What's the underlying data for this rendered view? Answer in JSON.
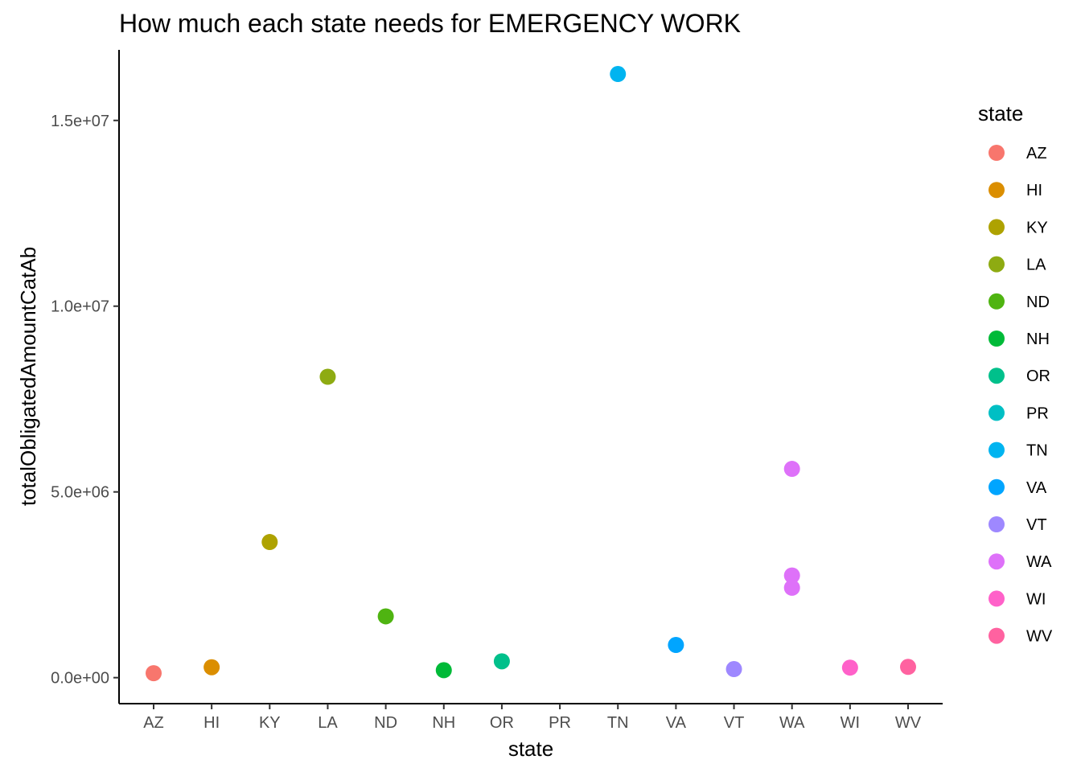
{
  "chart_data": {
    "type": "scatter",
    "title": "How much each state needs for EMERGENCY WORK",
    "xlabel": "state",
    "ylabel": "totalObligatedAmountCatAb",
    "categories": [
      "AZ",
      "HI",
      "KY",
      "LA",
      "ND",
      "NH",
      "OR",
      "PR",
      "TN",
      "VA",
      "VT",
      "WA",
      "WI",
      "WV"
    ],
    "ylim": [
      -700000,
      16900000
    ],
    "yticks": [
      {
        "value": 0,
        "label": "0.0e+00"
      },
      {
        "value": 5000000,
        "label": "5.0e+06"
      },
      {
        "value": 10000000,
        "label": "1.0e+07"
      },
      {
        "value": 15000000,
        "label": "1.5e+07"
      }
    ],
    "points": [
      {
        "state": "AZ",
        "value": 120000
      },
      {
        "state": "HI",
        "value": 280000
      },
      {
        "state": "KY",
        "value": 3650000
      },
      {
        "state": "LA",
        "value": 8100000
      },
      {
        "state": "ND",
        "value": 1650000
      },
      {
        "state": "NH",
        "value": 200000
      },
      {
        "state": "OR",
        "value": 440000
      },
      {
        "state": "TN",
        "value": 16250000
      },
      {
        "state": "VA",
        "value": 880000
      },
      {
        "state": "VT",
        "value": 230000
      },
      {
        "state": "WA",
        "value": 5620000
      },
      {
        "state": "WA",
        "value": 2750000
      },
      {
        "state": "WA",
        "value": 2420000
      },
      {
        "state": "WI",
        "value": 270000
      },
      {
        "state": "WV",
        "value": 290000
      }
    ],
    "legend": {
      "title": "state",
      "position": "right",
      "items": [
        {
          "label": "AZ",
          "color": "#F8766D"
        },
        {
          "label": "HI",
          "color": "#DB8E00"
        },
        {
          "label": "KY",
          "color": "#AEA200"
        },
        {
          "label": "LA",
          "color": "#8EAB12"
        },
        {
          "label": "ND",
          "color": "#4FB411"
        },
        {
          "label": "NH",
          "color": "#00BA38"
        },
        {
          "label": "OR",
          "color": "#00C08B"
        },
        {
          "label": "PR",
          "color": "#00BFC4"
        },
        {
          "label": "TN",
          "color": "#00B4F0"
        },
        {
          "label": "VA",
          "color": "#00A5FF"
        },
        {
          "label": "VT",
          "color": "#9E88FF"
        },
        {
          "label": "WA",
          "color": "#DE71F9"
        },
        {
          "label": "WI",
          "color": "#FF61C9"
        },
        {
          "label": "WV",
          "color": "#FF62A0"
        }
      ]
    },
    "grid": false
  }
}
